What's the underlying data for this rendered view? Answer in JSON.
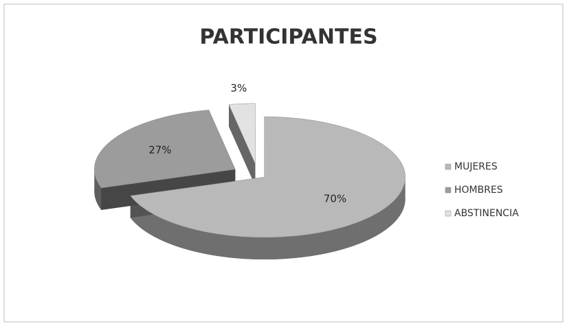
{
  "chart_data": {
    "type": "pie",
    "title": "PARTICIPANTES",
    "categories": [
      "MUJERES",
      "HOMBRES",
      "ABSTINENCIA"
    ],
    "values": [
      70,
      27,
      3
    ],
    "value_labels": [
      "70%",
      "27%",
      "3%"
    ],
    "colors": [
      "#b9b9b9",
      "#9c9c9c",
      "#e2e2e2"
    ],
    "legend": "right"
  }
}
